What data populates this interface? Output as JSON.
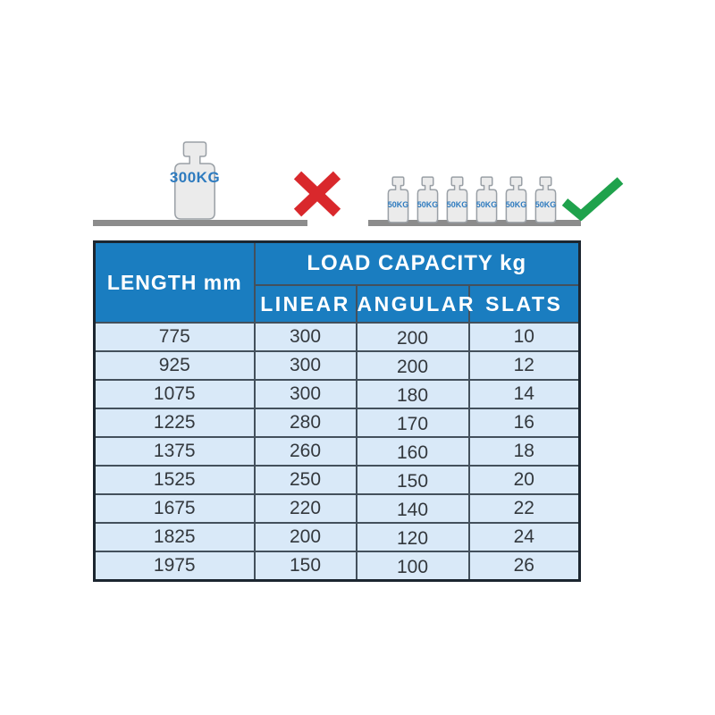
{
  "illustration": {
    "wrong_example": {
      "weight_label": "300KG",
      "mark": "cross"
    },
    "right_example": {
      "weight_label": "50KG",
      "weight_count": 6,
      "mark": "check"
    }
  },
  "table": {
    "header": {
      "length": "LENGTH mm",
      "load_capacity": "LOAD CAPACITY kg",
      "columns": [
        "LINEAR",
        "ANGULAR",
        "SLATS"
      ]
    },
    "rows": [
      {
        "length": "775",
        "linear": "300",
        "angular": "200",
        "slats": "10"
      },
      {
        "length": "925",
        "linear": "300",
        "angular": "200",
        "slats": "12"
      },
      {
        "length": "1075",
        "linear": "300",
        "angular": "180",
        "slats": "14"
      },
      {
        "length": "1225",
        "linear": "280",
        "angular": "170",
        "slats": "16"
      },
      {
        "length": "1375",
        "linear": "260",
        "angular": "160",
        "slats": "18"
      },
      {
        "length": "1525",
        "linear": "250",
        "angular": "150",
        "slats": "20"
      },
      {
        "length": "1675",
        "linear": "220",
        "angular": "140",
        "slats": "22"
      },
      {
        "length": "1825",
        "linear": "200",
        "angular": "120",
        "slats": "24"
      },
      {
        "length": "1975",
        "linear": "150",
        "angular": "100",
        "slats": "26"
      }
    ]
  },
  "colors": {
    "header_blue": "#1a7dc0",
    "cell_blue": "#d9e9f8",
    "table_border": "#1c2630",
    "grid_line": "#43505c",
    "body_text": "#33383d",
    "weight_fill": "#ebebeb",
    "weight_stroke": "#9aa0a6",
    "weight_label": "#2e7bbf",
    "shelf_gray": "#8c8c8c",
    "cross_red": "#d9282c",
    "check_green": "#1fa24c"
  }
}
